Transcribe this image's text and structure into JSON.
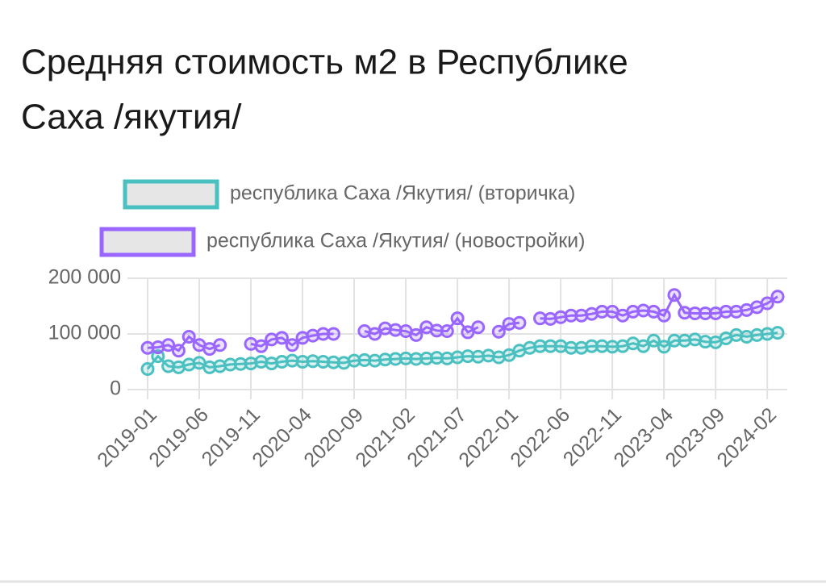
{
  "chart_data": {
    "type": "line",
    "title": [
      "Средняя стоимость м2 в Республике",
      "Саха /якутия/"
    ],
    "categories": [
      "2019-01",
      null,
      null,
      null,
      null,
      "2019-06",
      null,
      null,
      null,
      null,
      "2019-11",
      null,
      null,
      null,
      null,
      "2020-04",
      null,
      null,
      null,
      null,
      "2020-09",
      null,
      null,
      null,
      null,
      "2021-02",
      null,
      null,
      null,
      null,
      "2021-07",
      null,
      null,
      null,
      null,
      "2022-01",
      null,
      null,
      null,
      null,
      "2022-06",
      null,
      null,
      null,
      null,
      "2022-11",
      null,
      null,
      null,
      null,
      "2023-04",
      null,
      null,
      null,
      null,
      "2023-09",
      null,
      null,
      null,
      null,
      "2024-02",
      null
    ],
    "series": [
      {
        "name": "республика Саха /Якутия/ (вторичка)",
        "color": "#4bc0c0",
        "values": [
          37000,
          60000,
          42000,
          40000,
          45000,
          48000,
          40000,
          42000,
          45000,
          46000,
          47000,
          50000,
          47000,
          50000,
          52000,
          50000,
          51000,
          50000,
          49000,
          48000,
          52000,
          53000,
          52000,
          54000,
          55000,
          56000,
          55000,
          56000,
          57000,
          56000,
          58000,
          60000,
          59000,
          61000,
          58000,
          62000,
          70000,
          75000,
          78000,
          78000,
          78000,
          75000,
          75000,
          78000,
          78000,
          77000,
          78000,
          83000,
          78000,
          88000,
          77000,
          88000,
          88000,
          90000,
          86000,
          85000,
          92000,
          98000,
          95000,
          98000,
          100000,
          102000
        ]
      },
      {
        "name": "республика Саха /Якутия/ (новостройки)",
        "color": "#9966ff",
        "values": [
          75000,
          76000,
          80000,
          70000,
          95000,
          80000,
          73000,
          80000,
          null,
          null,
          82000,
          78000,
          90000,
          93000,
          80000,
          93000,
          97000,
          100000,
          100000,
          null,
          null,
          105000,
          100000,
          110000,
          107000,
          105000,
          98000,
          112000,
          106000,
          105000,
          128000,
          103000,
          112000,
          null,
          104000,
          118000,
          120000,
          null,
          128000,
          127000,
          130000,
          133000,
          133000,
          136000,
          140000,
          140000,
          133000,
          140000,
          142000,
          140000,
          133000,
          170000,
          138000,
          137000,
          137000,
          137000,
          140000,
          140000,
          143000,
          148000,
          155000,
          167000
        ]
      }
    ],
    "ylim": [
      0,
      200000
    ],
    "yticks": [
      0,
      {
        "value": 100000,
        "label": "100 000"
      },
      {
        "value": 200000,
        "label": "200 000"
      }
    ],
    "grid": true,
    "legend": "top"
  }
}
